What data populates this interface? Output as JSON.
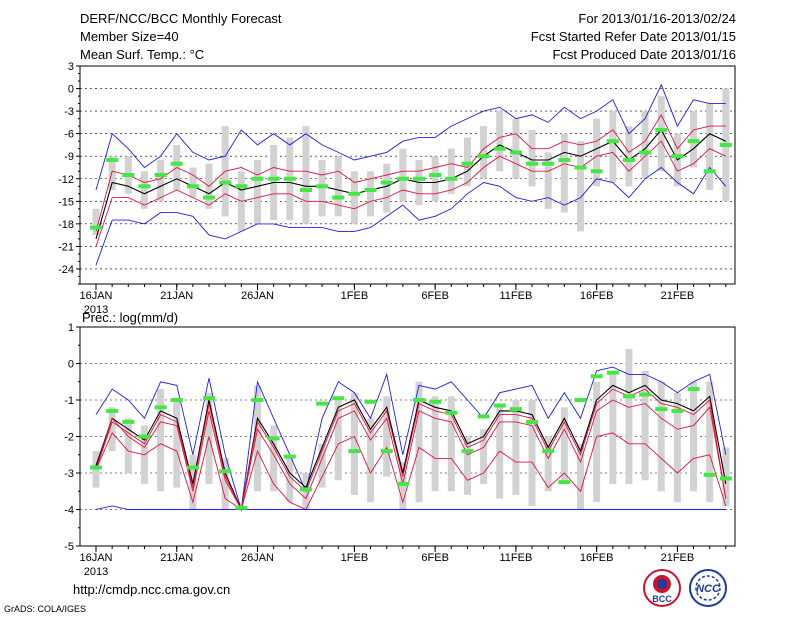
{
  "header": {
    "title": "DERF/NCC/BCC Monthly Forecast",
    "member_size": "Member Size=40",
    "variable_top": "Mean Surf. Temp.: °C",
    "period": "For 2013/01/16-2013/02/24",
    "fcst_started": "Fcst Started Refer Date 2013/01/15",
    "fcst_produced": "Fcst Produced Date 2013/01/16"
  },
  "footer": {
    "url": "http://cmdp.ncc.cma.gov.cn",
    "credit": "GrADS: COLA/IGES",
    "logo_bcc": "BCC",
    "logo_ncc": "NCC"
  },
  "colors": {
    "mean": "#000000",
    "spread": "#e0143c",
    "extreme": "#1e1ee6",
    "box": "#d2d2d2",
    "climo": "#46e646",
    "grid": "#000000"
  },
  "chart_data": [
    {
      "type": "line",
      "title": "Mean Surf. Temp.: °C",
      "x_tick_labels": [
        "16JAN",
        "21JAN",
        "26JAN",
        "1FEB",
        "6FEB",
        "11FEB",
        "16FEB",
        "21FEB"
      ],
      "x_first_year": "2013",
      "x_tick_days": [
        0,
        5,
        10,
        16,
        21,
        26,
        31,
        36
      ],
      "ylim": [
        -26,
        3
      ],
      "y_ticks": [
        3,
        0,
        -3,
        -6,
        -9,
        -12,
        -15,
        -18,
        -21,
        -24
      ],
      "days": [
        0,
        1,
        2,
        3,
        4,
        5,
        6,
        7,
        8,
        9,
        10,
        11,
        12,
        13,
        14,
        15,
        16,
        17,
        18,
        19,
        20,
        21,
        22,
        23,
        24,
        25,
        26,
        27,
        28,
        29,
        30,
        31,
        32,
        33,
        34,
        35,
        36,
        37,
        38,
        39
      ],
      "series": [
        {
          "name": "maximum",
          "values": [
            -13.5,
            -6,
            -8,
            -10.5,
            -9,
            -6,
            -8.5,
            -9.5,
            -9,
            -5.5,
            -7.5,
            -6,
            -7.5,
            -6,
            -7.5,
            -8.5,
            -9.5,
            -9,
            -8.5,
            -7,
            -6.5,
            -6.5,
            -5,
            -4,
            -3,
            -2.5,
            -4,
            -3.5,
            -4.5,
            -2.5,
            -4,
            -3,
            -1.5,
            -6,
            -4,
            0.5,
            -5,
            -1.5,
            -2,
            -2
          ]
        },
        {
          "name": "upper",
          "values": [
            -19,
            -11,
            -11.5,
            -12.5,
            -12,
            -10.5,
            -11.5,
            -13,
            -11,
            -10.5,
            -11.5,
            -10.5,
            -11,
            -11,
            -11.5,
            -11,
            -12.5,
            -12,
            -11.5,
            -11,
            -11,
            -10.5,
            -10,
            -10.5,
            -8,
            -6.5,
            -6,
            -8,
            -8,
            -7,
            -7.5,
            -7,
            -5.5,
            -8.5,
            -7,
            -3.5,
            -8,
            -5.5,
            -5,
            -5
          ]
        },
        {
          "name": "mean",
          "values": [
            -20,
            -12.5,
            -13,
            -14,
            -13,
            -12,
            -13,
            -14,
            -12.5,
            -13.5,
            -13,
            -12.5,
            -12.5,
            -13,
            -13,
            -13.5,
            -14,
            -13.5,
            -13,
            -12,
            -12.5,
            -12.5,
            -12,
            -11,
            -9,
            -7.5,
            -8.5,
            -9.5,
            -9.5,
            -8.5,
            -9,
            -8,
            -7,
            -9.5,
            -8,
            -5.5,
            -9.5,
            -8,
            -6,
            -7
          ]
        },
        {
          "name": "lower",
          "values": [
            -21,
            -14.5,
            -14.5,
            -15.5,
            -14.5,
            -13.5,
            -14.5,
            -15.5,
            -14,
            -15,
            -14.5,
            -14,
            -14,
            -15,
            -15,
            -15.5,
            -16,
            -15,
            -14.5,
            -13.5,
            -14,
            -14,
            -13.5,
            -12.5,
            -10.5,
            -9,
            -10,
            -11,
            -11,
            -10,
            -10.5,
            -9,
            -8.5,
            -11,
            -9,
            -7,
            -11,
            -10,
            -8,
            -9
          ]
        },
        {
          "name": "minimum",
          "values": [
            -23.5,
            -17.5,
            -17.5,
            -18,
            -16.5,
            -16.5,
            -17,
            -19.5,
            -20,
            -19,
            -18,
            -18,
            -18.5,
            -18.5,
            -18.5,
            -19,
            -19,
            -18.5,
            -17,
            -15.5,
            -17.5,
            -17,
            -16,
            -14,
            -12.5,
            -13,
            -14.5,
            -15,
            -14.5,
            -15.5,
            -14.5,
            -12,
            -12.5,
            -14.5,
            -12,
            -10.5,
            -12.5,
            -14,
            -10.5,
            -13
          ]
        }
      ],
      "box_ranges": [
        [
          -19.5,
          -16
        ],
        [
          -13.5,
          -9
        ],
        [
          -14,
          -9
        ],
        [
          -16,
          -11
        ],
        [
          -15,
          -9.5
        ],
        [
          -13.5,
          -7.5
        ],
        [
          -14.5,
          -10.5
        ],
        [
          -16,
          -10
        ],
        [
          -17,
          -5
        ],
        [
          -19,
          -11
        ],
        [
          -18,
          -9.5
        ],
        [
          -17.5,
          -7.5
        ],
        [
          -17.5,
          -6.5
        ],
        [
          -18,
          -5
        ],
        [
          -17,
          -9.5
        ],
        [
          -17,
          -9
        ],
        [
          -18,
          -11
        ],
        [
          -17,
          -11
        ],
        [
          -16.5,
          -10
        ],
        [
          -15,
          -8
        ],
        [
          -15.5,
          -9.5
        ],
        [
          -15,
          -9
        ],
        [
          -14,
          -8
        ],
        [
          -13,
          -6.5
        ],
        [
          -12,
          -5
        ],
        [
          -11,
          -3
        ],
        [
          -12,
          -4
        ],
        [
          -13,
          -5.5
        ],
        [
          -16,
          -8.5
        ],
        [
          -16.5,
          -6
        ],
        [
          -19,
          -7
        ],
        [
          -13,
          -4
        ],
        [
          -12.5,
          -3
        ],
        [
          -13,
          -5
        ],
        [
          -12,
          -3
        ],
        [
          -11,
          -1
        ],
        [
          -13,
          -6
        ],
        [
          -10.5,
          -3
        ],
        [
          -13.5,
          -2
        ],
        [
          -15,
          0
        ]
      ],
      "climo": [
        -18.5,
        -9.5,
        -11.5,
        -13,
        -11.5,
        -10,
        -13,
        -14.5,
        -12.5,
        -13,
        -12,
        -12,
        -12,
        -13.5,
        -13,
        -14.5,
        -14,
        -13.5,
        -12.5,
        -12,
        -12,
        -11.5,
        -12,
        -10,
        -9,
        -8,
        -8.5,
        -10,
        -10,
        -9.5,
        -10.5,
        -11,
        -7,
        -9.5,
        -8.5,
        -5.5,
        -9,
        -7,
        -11,
        -7.5
      ]
    },
    {
      "type": "line",
      "title": "Prec.: log(mm/d)",
      "x_tick_labels": [
        "16JAN",
        "21JAN",
        "26JAN",
        "1FEB",
        "6FEB",
        "11FEB",
        "16FEB",
        "21FEB"
      ],
      "x_first_year": "2013",
      "x_tick_days": [
        0,
        5,
        10,
        16,
        21,
        26,
        31,
        36
      ],
      "ylim": [
        -5,
        1
      ],
      "y_ticks": [
        1,
        0,
        -1,
        -2,
        -3,
        -4,
        -5
      ],
      "days": [
        0,
        1,
        2,
        3,
        4,
        5,
        6,
        7,
        8,
        9,
        10,
        11,
        12,
        13,
        14,
        15,
        16,
        17,
        18,
        19,
        20,
        21,
        22,
        23,
        24,
        25,
        26,
        27,
        28,
        29,
        30,
        31,
        32,
        33,
        34,
        35,
        36,
        37,
        38,
        39
      ],
      "series": [
        {
          "name": "maximum",
          "values": [
            -1.4,
            -0.7,
            -1,
            -1.5,
            -0.5,
            -0.6,
            -2.5,
            -0.4,
            -2.5,
            -4,
            -0.5,
            -1.5,
            -2.5,
            -3.5,
            -1.5,
            -0.5,
            -0.8,
            -1.5,
            -0.3,
            -2.5,
            -0.6,
            -0.7,
            -0.5,
            -1,
            -1.5,
            -0.8,
            -0.7,
            -0.6,
            -1.5,
            -0.8,
            -1.5,
            -0.2,
            -0.1,
            -0.3,
            -0.3,
            -0.5,
            -0.8,
            -0.5,
            -0.3,
            -2.5
          ]
        },
        {
          "name": "mean",
          "values": [
            -2.8,
            -1.5,
            -1.8,
            -2.1,
            -1.3,
            -1.5,
            -3.3,
            -1.0,
            -3.0,
            -4.0,
            -1.5,
            -2.2,
            -3.0,
            -3.4,
            -2.3,
            -1.2,
            -1.0,
            -1.8,
            -1.2,
            -3.0,
            -1.0,
            -1.2,
            -1.3,
            -2.2,
            -2.0,
            -1.3,
            -1.3,
            -1.4,
            -2.3,
            -1.5,
            -2.4,
            -1.0,
            -0.6,
            -0.8,
            -0.6,
            -1.0,
            -1.1,
            -1.3,
            -0.9,
            -3.3
          ]
        },
        {
          "name": "upper",
          "values": [
            -2.9,
            -1.6,
            -1.9,
            -2.2,
            -1.4,
            -1.6,
            -3.4,
            -1.1,
            -3.1,
            -4.0,
            -1.6,
            -2.3,
            -3.1,
            -3.5,
            -2.4,
            -1.3,
            -1.1,
            -1.9,
            -1.3,
            -3.1,
            -1.1,
            -1.3,
            -1.4,
            -2.3,
            -2.1,
            -1.4,
            -1.4,
            -1.5,
            -2.4,
            -1.6,
            -2.5,
            -1.1,
            -0.7,
            -0.9,
            -0.7,
            -1.1,
            -1.2,
            -1.4,
            -1.0,
            -3.7
          ]
        },
        {
          "name": "lower",
          "values": [
            -2.9,
            -1.5,
            -2.0,
            -2.3,
            -1.6,
            -1.7,
            -3.5,
            -1.3,
            -3.2,
            -4.0,
            -1.8,
            -2.5,
            -3.3,
            -3.7,
            -2.6,
            -1.5,
            -1.3,
            -2.1,
            -1.5,
            -3.3,
            -1.3,
            -1.5,
            -1.6,
            -2.5,
            -2.3,
            -1.6,
            -1.6,
            -1.7,
            -2.6,
            -1.8,
            -2.7,
            -1.3,
            -1.0,
            -1.2,
            -1.1,
            -1.5,
            -1.8,
            -1.7,
            -1.2,
            -3.7
          ]
        },
        {
          "name": "lowest",
          "values": [
            -2.9,
            -1.9,
            -2.4,
            -2.5,
            -2.2,
            -2.4,
            -3.8,
            -2.0,
            -3.7,
            -4.0,
            -2.4,
            -3.3,
            -3.8,
            -4.0,
            -3.1,
            -2.2,
            -2.0,
            -3.0,
            -2.3,
            -3.8,
            -2.3,
            -2.6,
            -2.6,
            -3.2,
            -3.0,
            -2.4,
            -2.7,
            -2.7,
            -3.4,
            -3.0,
            -3.5,
            -2.0,
            -1.9,
            -2.2,
            -2.2,
            -2.6,
            -3.0,
            -2.6,
            -2.5,
            -3.9
          ]
        },
        {
          "name": "minimum",
          "values": [
            -4,
            -3.9,
            -4,
            -4,
            -4,
            -4,
            -4,
            -4,
            -4,
            -4,
            -4,
            -4,
            -4,
            -4,
            -4,
            -4,
            -4,
            -4,
            -4,
            -4,
            -4,
            -4,
            -4,
            -4,
            -4,
            -4,
            -4,
            -4,
            -4,
            -4,
            -4,
            -4,
            -4,
            -4,
            -4,
            -4,
            -4,
            -4,
            -4,
            -4
          ]
        }
      ],
      "box_ranges": [
        [
          -3.4,
          -2.4
        ],
        [
          -2.4,
          -1.2
        ],
        [
          -3,
          -1.5
        ],
        [
          -3.3,
          -1.7
        ],
        [
          -3.5,
          -0.7
        ],
        [
          -3.4,
          -1
        ],
        [
          -4,
          -2.5
        ],
        [
          -3.3,
          -0.8
        ],
        [
          -4,
          -2.6
        ],
        [
          -4,
          -3.9
        ],
        [
          -3.5,
          -0.6
        ],
        [
          -3.5,
          -1.7
        ],
        [
          -3.8,
          -2.5
        ],
        [
          -4,
          -3
        ],
        [
          -3.4,
          -2.2
        ],
        [
          -3.2,
          -1
        ],
        [
          -3.6,
          -0.8
        ],
        [
          -3.8,
          -1.5
        ],
        [
          -3.1,
          -0.9
        ],
        [
          -4,
          -2.7
        ],
        [
          -3.8,
          -0.5
        ],
        [
          -3.5,
          -0.9
        ],
        [
          -3.5,
          -0.9
        ],
        [
          -3.6,
          -2
        ],
        [
          -3.3,
          -1.8
        ],
        [
          -3.7,
          -1.1
        ],
        [
          -3.6,
          -1
        ],
        [
          -3.9,
          -1
        ],
        [
          -3.5,
          -2
        ],
        [
          -3.3,
          -1.2
        ],
        [
          -4,
          -2.2
        ],
        [
          -3.8,
          -0.5
        ],
        [
          -3.3,
          -0.2
        ],
        [
          -3.3,
          0.4
        ],
        [
          -3.2,
          -0.2
        ],
        [
          -3.5,
          -0.5
        ],
        [
          -3.8,
          -0.8
        ],
        [
          -3.5,
          -0.5
        ],
        [
          -3.8,
          -0.5
        ],
        [
          -3.9,
          -2.3
        ]
      ],
      "climo": [
        -2.85,
        -1.3,
        -1.6,
        -2.0,
        -1.2,
        -1.0,
        -2.85,
        -0.95,
        -2.95,
        -3.95,
        -1.0,
        -2.05,
        -2.55,
        -3.45,
        -1.1,
        -0.95,
        -2.4,
        -1.05,
        -2.4,
        -3.3,
        -1.0,
        -1.05,
        -1.35,
        -2.4,
        -1.45,
        -1.15,
        -1.25,
        -1.6,
        -2.4,
        -3.25,
        -1.0,
        -0.35,
        -0.25,
        -0.9,
        -0.85,
        -1.25,
        -1.3,
        -0.7,
        -3.05,
        -3.15
      ]
    }
  ]
}
